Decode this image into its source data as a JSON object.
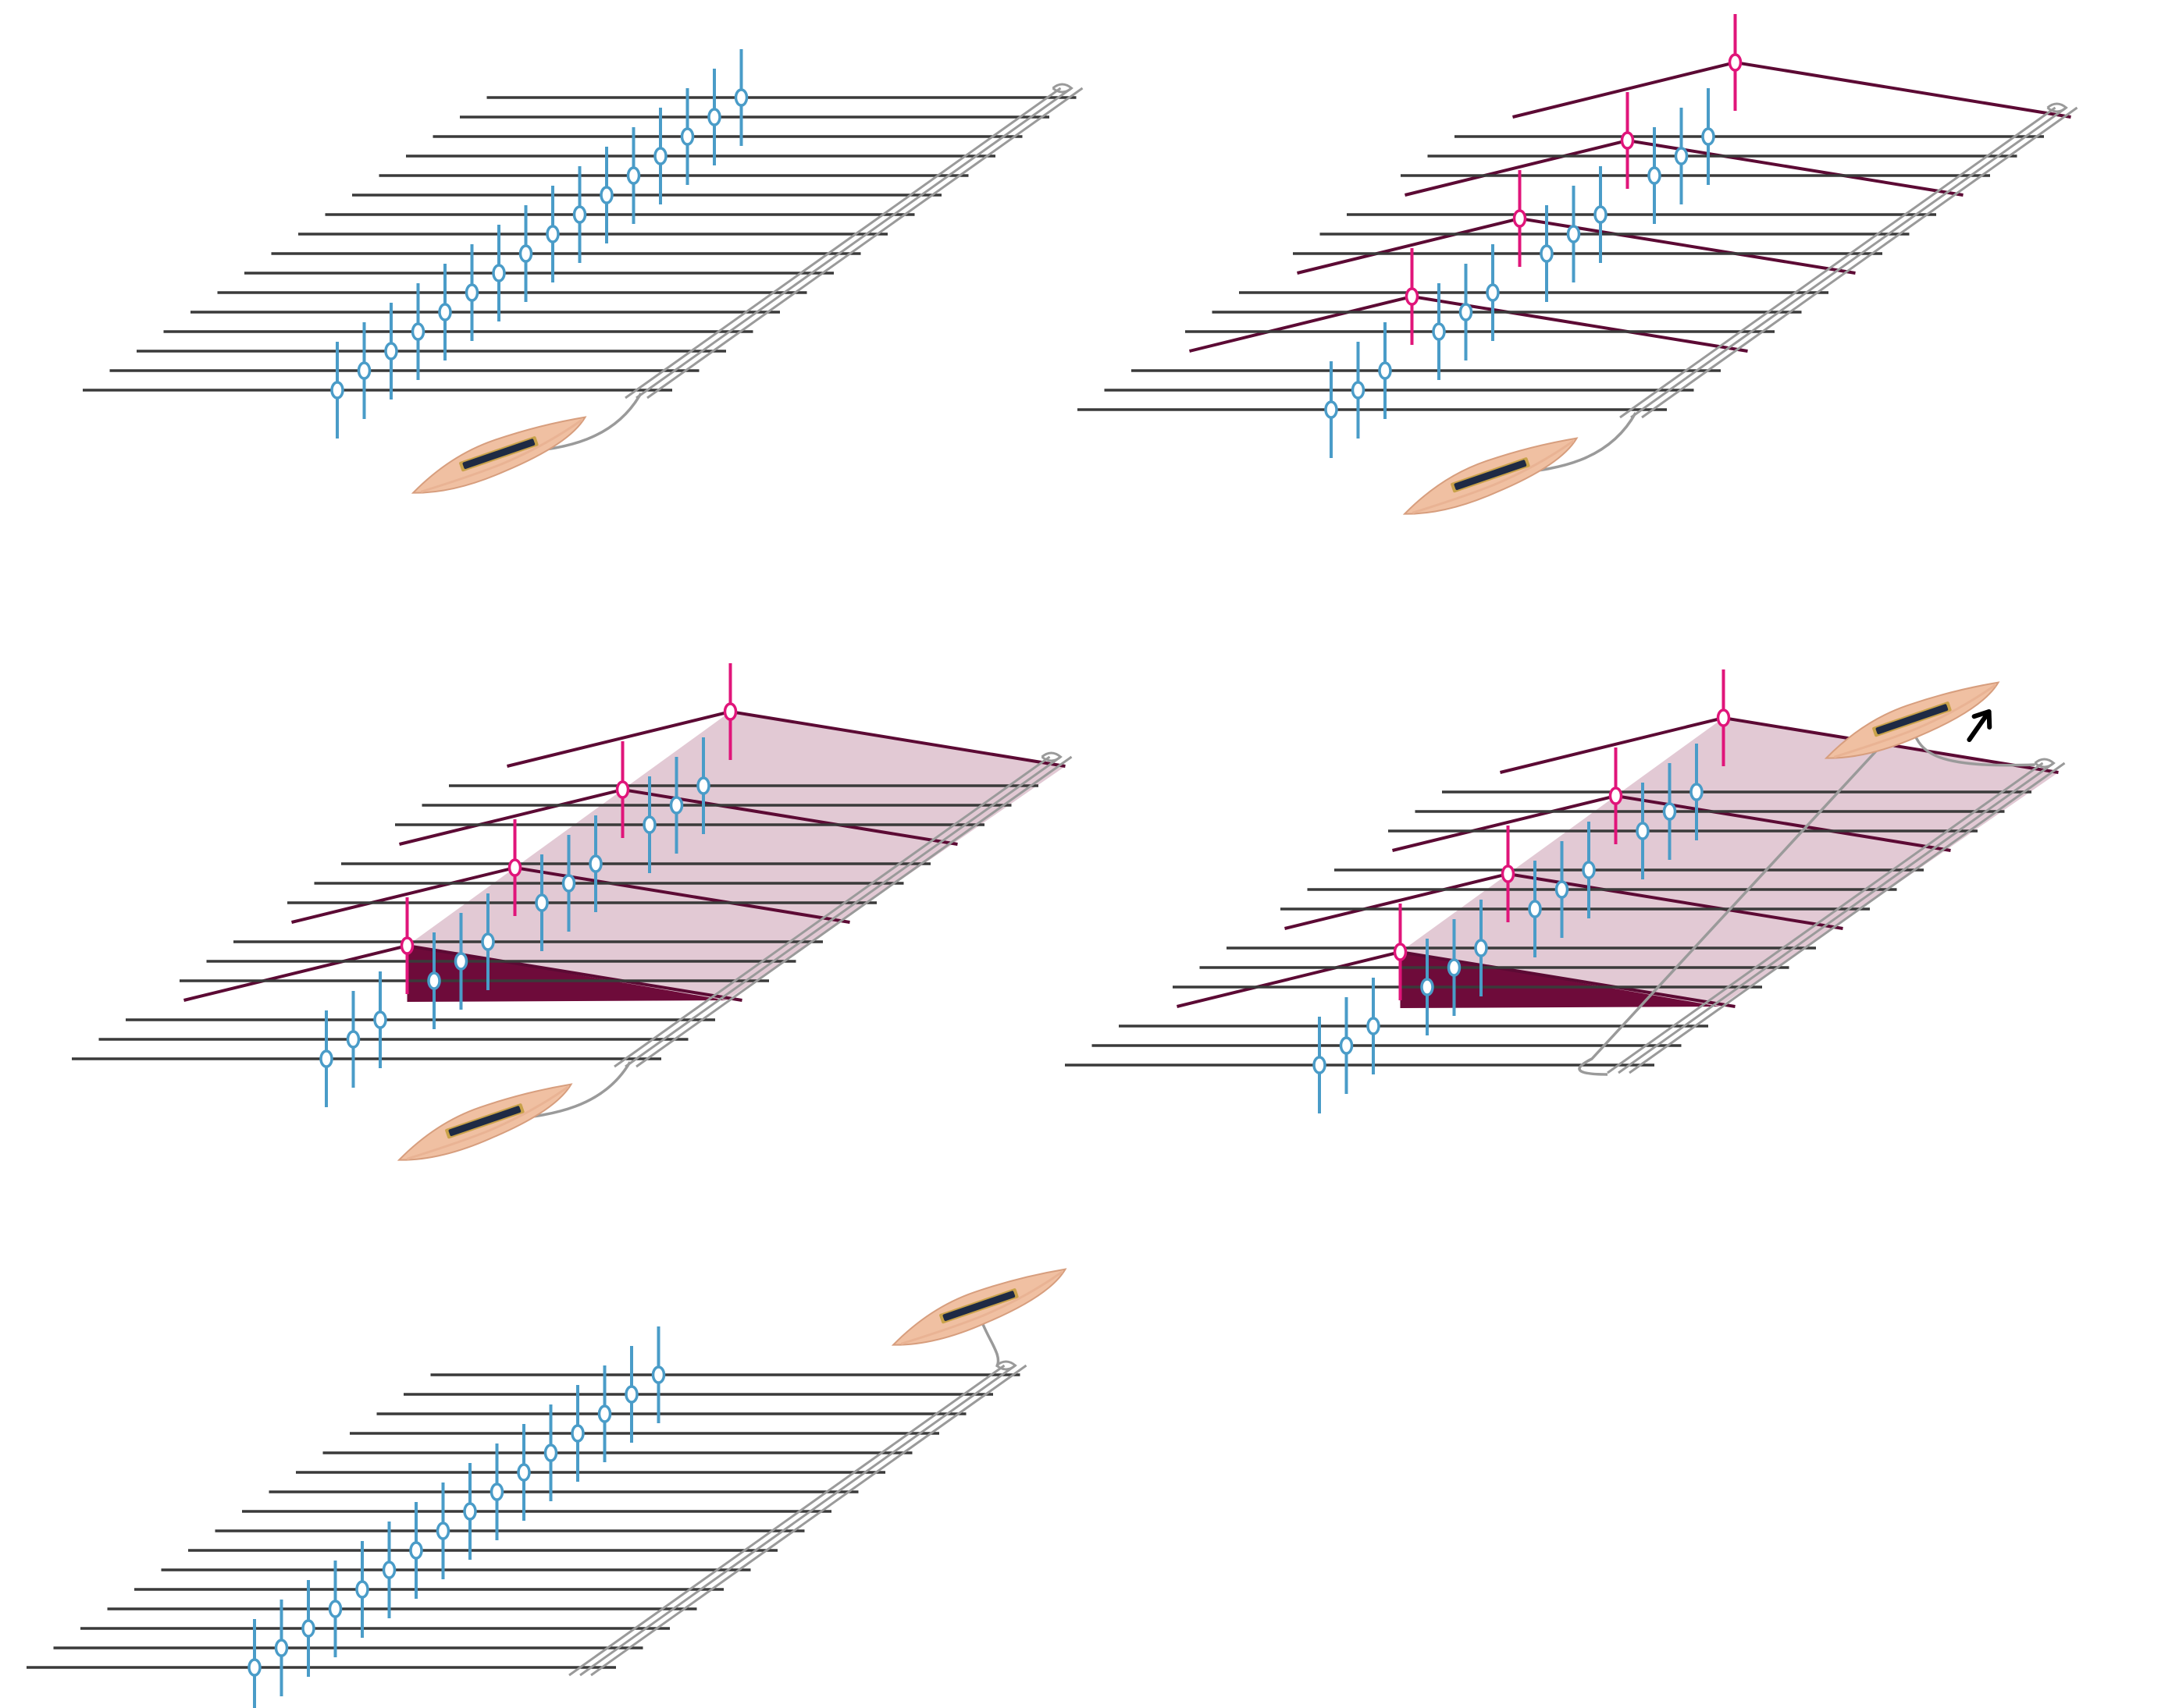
{
  "figure": {
    "panels": [
      {
        "id": "panel-1",
        "step": 1,
        "raised_heddles": [],
        "shed": false,
        "shuttle": "front",
        "arrow": false,
        "weft_passed": false
      },
      {
        "id": "panel-2",
        "step": 2,
        "raised_heddles": [
          3,
          7,
          11,
          15
        ],
        "shed": false,
        "shuttle": "front",
        "arrow": true,
        "weft_passed": false
      },
      {
        "id": "panel-3",
        "step": 3,
        "raised_heddles": [
          3,
          7,
          11,
          15
        ],
        "shed": true,
        "shuttle": "front",
        "arrow": false,
        "weft_passed": false
      },
      {
        "id": "panel-4",
        "step": 4,
        "raised_heddles": [
          3,
          7,
          11,
          15
        ],
        "shed": true,
        "shuttle": "back",
        "arrow": true,
        "weft_passed": true
      },
      {
        "id": "panel-5",
        "step": 5,
        "raised_heddles": [],
        "shed": false,
        "shuttle": "back",
        "arrow": false,
        "weft_passed": true
      }
    ],
    "colors": {
      "warp": "#3a3a3a",
      "heddle": "#4a9cc8",
      "raised_heddle": "#e0157a",
      "raised_warp": "#5c0a34",
      "shed_light": "#ddbfcc",
      "shed_dark": "#6e0b3a",
      "weft": "#9a9a9a",
      "shuttle_body": "#f0c0a2",
      "shuttle_bobbin": "#1e2a44",
      "arrow": "#000000"
    },
    "icons": {
      "arrow": "arrow-up-icon",
      "shuttle": "shuttle-icon"
    }
  }
}
